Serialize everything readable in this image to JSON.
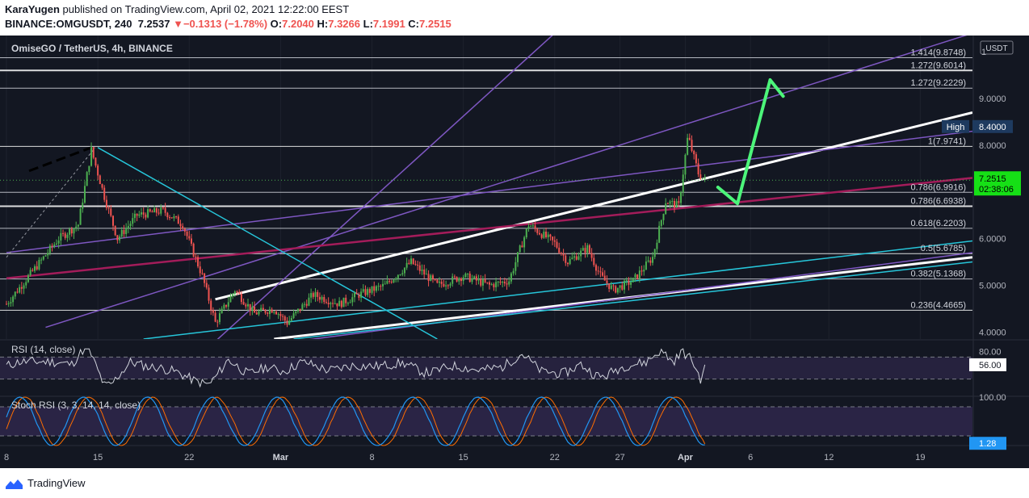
{
  "header": {
    "author": "KaraYugen",
    "published_text": "published on TradingView.com, April 02, 2021 12:22:00 EEST",
    "symbol": "BINANCE:OMGUSDT, 240",
    "last": "7.2537",
    "change_arrow": "▼",
    "change": "−0.1313 (−1.78%)",
    "o_label": "O:",
    "o_val": "7.2040",
    "h_label": "H:",
    "h_val": "7.3266",
    "l_label": "L:",
    "l_val": "7.1991",
    "c_label": "C:",
    "c_val": "7.2515"
  },
  "footer": {
    "brand": "TradingView",
    "logo_icon": "tradingview-logo-icon"
  },
  "colors": {
    "bg": "#131722",
    "grid": "#1e222d",
    "text": "#b2b5be",
    "up": "#4caf50",
    "down": "#ef5350",
    "white": "#ffffff",
    "purple": "#7e57c2",
    "cyan": "#26c6da",
    "maroon": "#a31c5a",
    "green_arrow": "#4cf57a"
  },
  "chart_data": {
    "type": "candlestick",
    "pane_title": "OmiseGO / TetherUS, 4h, BINANCE",
    "currency": "USDT",
    "ylim": [
      3.85,
      10.35
    ],
    "price_ticks": [
      "9.0000",
      "8.0000",
      "6.0000",
      "5.0000",
      "4.0000"
    ],
    "price_tick_values": [
      9.0,
      8.0,
      6.0,
      5.0,
      4.0
    ],
    "top_partial_label": "1",
    "x_ticks": [
      "8",
      "15",
      "22",
      "Mar",
      "8",
      "15",
      "22",
      "27",
      "Apr",
      "6",
      "12",
      "19"
    ],
    "x_tick_days": [
      0,
      7,
      14,
      21,
      28,
      35,
      42,
      47,
      52,
      57,
      63,
      70
    ],
    "x_range_days": [
      0,
      74
    ],
    "last_price": {
      "label": "7.2515",
      "countdown": "02:38:06",
      "value": 7.2515
    },
    "high_marker": {
      "label": "High",
      "value_label": "8.4000",
      "value": 8.4
    },
    "fib_levels": [
      {
        "label": "1.414(9.8748)",
        "value": 9.8748
      },
      {
        "label": "1.272(9.6014)",
        "value": 9.6014
      },
      {
        "label": "1.272(9.2229)",
        "value": 9.2229
      },
      {
        "label": "1(7.9741)",
        "value": 7.9741
      },
      {
        "label": "0.786(6.9916)",
        "value": 6.9916
      },
      {
        "label": "0.786(6.6938)",
        "value": 6.6938
      },
      {
        "label": "0.618(6.2203)",
        "value": 6.2203
      },
      {
        "label": "0.5(5.6785)",
        "value": 5.6785
      },
      {
        "label": "0.382(5.1368)",
        "value": 5.1368
      },
      {
        "label": "0.236(4.4665)",
        "value": 4.4665
      }
    ],
    "closes": [
      {
        "day": 0,
        "close": 4.6
      },
      {
        "day": 2,
        "close": 5.3
      },
      {
        "day": 4,
        "close": 6.0
      },
      {
        "day": 5.5,
        "close": 6.3
      },
      {
        "day": 6.5,
        "close": 7.9
      },
      {
        "day": 7.5,
        "close": 6.9
      },
      {
        "day": 8.5,
        "close": 6.0
      },
      {
        "day": 10,
        "close": 6.5
      },
      {
        "day": 12,
        "close": 6.6
      },
      {
        "day": 13.5,
        "close": 6.3
      },
      {
        "day": 15,
        "close": 5.2
      },
      {
        "day": 16,
        "close": 4.2
      },
      {
        "day": 17.5,
        "close": 4.9
      },
      {
        "day": 19,
        "close": 4.4
      },
      {
        "day": 20.5,
        "close": 4.5
      },
      {
        "day": 21.5,
        "close": 4.2
      },
      {
        "day": 23.5,
        "close": 4.8
      },
      {
        "day": 25.5,
        "close": 4.6
      },
      {
        "day": 27,
        "close": 4.8
      },
      {
        "day": 29,
        "close": 5.0
      },
      {
        "day": 31,
        "close": 5.5
      },
      {
        "day": 33,
        "close": 5.0
      },
      {
        "day": 35,
        "close": 5.2
      },
      {
        "day": 37,
        "close": 5.0
      },
      {
        "day": 38.5,
        "close": 5.1
      },
      {
        "day": 40,
        "close": 6.3
      },
      {
        "day": 42,
        "close": 5.9
      },
      {
        "day": 43,
        "close": 5.5
      },
      {
        "day": 44.5,
        "close": 5.8
      },
      {
        "day": 45.5,
        "close": 5.2
      },
      {
        "day": 46.5,
        "close": 4.9
      },
      {
        "day": 48,
        "close": 5.1
      },
      {
        "day": 49.5,
        "close": 5.6
      },
      {
        "day": 50.5,
        "close": 6.8
      },
      {
        "day": 51.5,
        "close": 6.7
      },
      {
        "day": 52.2,
        "close": 8.2
      },
      {
        "day": 53,
        "close": 7.4
      },
      {
        "day": 53.5,
        "close": 7.25
      }
    ],
    "trend_lines": [
      {
        "color": "white",
        "points": [
          [
            16,
            4.7
          ],
          [
            74,
            8.7
          ]
        ]
      },
      {
        "color": "white",
        "points": [
          [
            20.5,
            3.85
          ],
          [
            74,
            5.6
          ]
        ]
      },
      {
        "color": "purple",
        "points": [
          [
            0,
            5.7
          ],
          [
            74,
            8.3
          ]
        ]
      },
      {
        "color": "purple",
        "points": [
          [
            3,
            4.1
          ],
          [
            74,
            10.4
          ]
        ]
      },
      {
        "color": "purple",
        "points": [
          [
            16,
            3.8
          ],
          [
            42,
            10.4
          ]
        ]
      },
      {
        "color": "purple",
        "points": [
          [
            14,
            3.5
          ],
          [
            74,
            5.7
          ]
        ]
      },
      {
        "color": "maroon",
        "points": [
          [
            0,
            5.15
          ],
          [
            74,
            7.3
          ]
        ]
      },
      {
        "color": "cyan",
        "points": [
          [
            7,
            7.95
          ],
          [
            33,
            3.85
          ]
        ]
      },
      {
        "color": "cyan",
        "points": [
          [
            10.5,
            3.85
          ],
          [
            74,
            5.95
          ]
        ]
      },
      {
        "color": "cyan",
        "points": [
          [
            22,
            3.85
          ],
          [
            74,
            5.5
          ]
        ]
      }
    ],
    "projection": {
      "points": [
        [
          54.5,
          7.1
        ],
        [
          56,
          6.75
        ],
        [
          58.5,
          9.4
        ],
        [
          59.5,
          9.05
        ]
      ]
    },
    "rsi": {
      "title": "RSI (14, close)",
      "ticks": [
        "80.00"
      ],
      "tick_values": [
        80
      ],
      "upper": 70,
      "lower": 30,
      "current_label": "56.00",
      "current": 56
    },
    "stoch_rsi": {
      "title": "Stoch RSI (3, 3, 14, 14, close)",
      "ticks": [
        "100.00"
      ],
      "tick_values": [
        100
      ],
      "upper": 80,
      "lower": 20,
      "current_label": "1.28",
      "current": 1.28
    }
  }
}
